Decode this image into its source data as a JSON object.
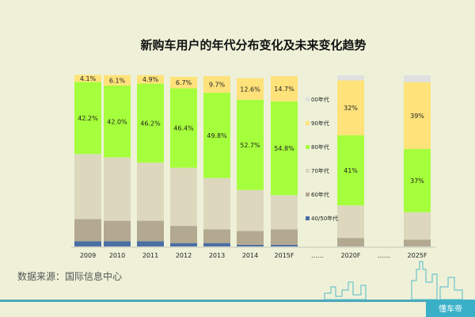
{
  "chart_data": {
    "type": "bar",
    "stacked": true,
    "title": "新购车用户的年代分布变化及未来变化趋势",
    "categories": [
      "2009",
      "2010",
      "2011",
      "2012",
      "2013",
      "2014",
      "2015F",
      "……",
      "2020F",
      "……",
      "2025F"
    ],
    "series": [
      {
        "name": "00年代",
        "color": "#e0e0e0",
        "values": [
          0,
          0,
          0,
          0,
          0,
          0,
          0,
          null,
          3,
          null,
          4
        ]
      },
      {
        "name": "90年代",
        "color": "#ffe27a",
        "values": [
          4.1,
          6.1,
          4.9,
          6.7,
          9.7,
          12.6,
          14.7,
          null,
          32,
          null,
          39
        ]
      },
      {
        "name": "80年代",
        "color": "#a6ff3c",
        "values": [
          42.2,
          42.0,
          46.2,
          46.4,
          49.8,
          52.7,
          54.8,
          null,
          41,
          null,
          37
        ]
      },
      {
        "name": "70年代",
        "color": "#ddd8bd",
        "values": [
          38,
          37,
          34,
          34,
          30,
          24,
          20,
          null,
          19,
          null,
          16
        ]
      },
      {
        "name": "60年代",
        "color": "#b3a890",
        "values": [
          13,
          12,
          12,
          10,
          8,
          8,
          9,
          null,
          5,
          null,
          4
        ]
      },
      {
        "name": "40/50年代",
        "color": "#4a6fa5",
        "values": [
          3,
          3,
          3,
          2,
          2,
          1,
          1,
          null,
          0,
          null,
          0
        ]
      }
    ],
    "segment_labels": {
      "90年代": [
        "4.1%",
        "6.1%",
        "4.9%",
        "6.7%",
        "9.7%",
        "12.6%",
        "14.7%",
        null,
        "32%",
        null,
        "39%"
      ],
      "80年代": [
        "42.2%",
        "42.0%",
        "46.2%",
        "46.4%",
        "49.8%",
        "52.7%",
        "54.8%",
        null,
        "41%",
        null,
        "37%"
      ]
    },
    "ylim": [
      0,
      100
    ],
    "legend": {
      "position": "middle",
      "items": [
        "00年代",
        "90年代",
        "80年代",
        "70年代",
        "60年代",
        "40/50年代"
      ]
    }
  },
  "source_text": "数据来源：国际信息中心",
  "watermark": "懂车帝"
}
